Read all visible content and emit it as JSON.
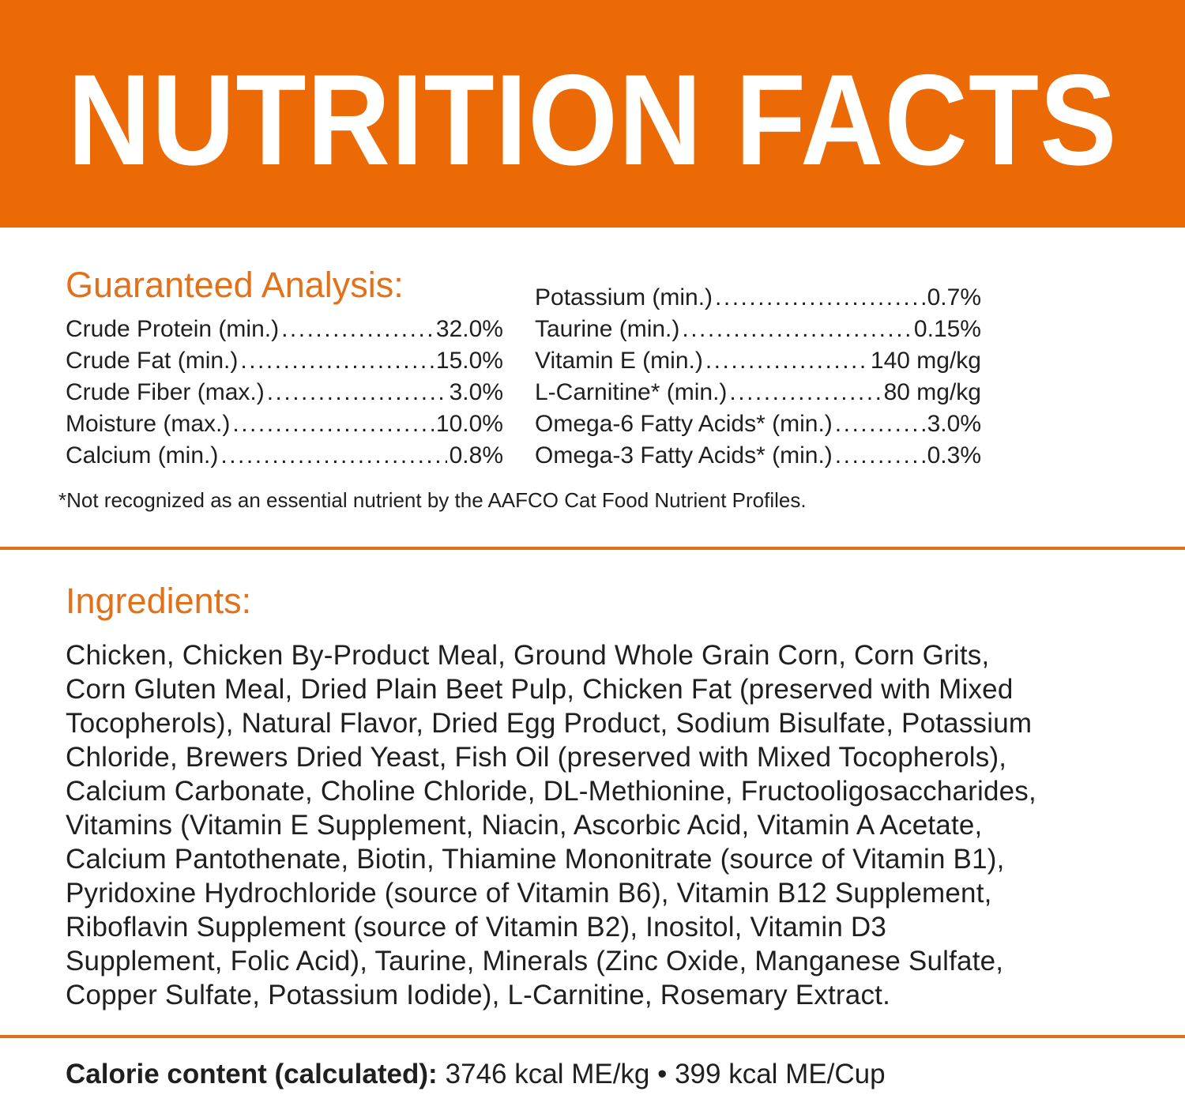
{
  "theme": {
    "orange": "#EC6A05",
    "heading-orange": "#E2711C",
    "rule-orange": "#E0701A",
    "text": "#1F1F1F"
  },
  "header": {
    "title": "NUTRITION FACTS"
  },
  "ga": {
    "heading": "Guaranteed Analysis:",
    "left": [
      {
        "label": "Crude Protein (min.)",
        "value": "32.0%"
      },
      {
        "label": "Crude Fat (min.)",
        "value": "15.0%"
      },
      {
        "label": "Crude Fiber (max.)",
        "value": "3.0%"
      },
      {
        "label": "Moisture (max.)",
        "value": "10.0%"
      },
      {
        "label": "Calcium (min.)",
        "value": "0.8%"
      }
    ],
    "right": [
      {
        "label": "Potassium (min.)",
        "value": "0.7%"
      },
      {
        "label": "Taurine (min.)",
        "value": "0.15%"
      },
      {
        "label": "Vitamin E (min.)",
        "value": "140 mg/kg"
      },
      {
        "label": "L-Carnitine* (min.)",
        "value": "80 mg/kg"
      },
      {
        "label": "Omega-6 Fatty Acids* (min.)",
        "value": "3.0%"
      },
      {
        "label": "Omega-3 Fatty Acids* (min.)",
        "value": "0.3%"
      }
    ],
    "footnote": "*Not recognized as an essential nutrient by the AAFCO Cat Food Nutrient Profiles."
  },
  "ing": {
    "heading": "Ingredients:",
    "lines": [
      "Chicken, Chicken By-Product Meal, Ground Whole Grain Corn, Corn Grits,",
      "Corn Gluten Meal, Dried Plain Beet Pulp, Chicken Fat (preserved with Mixed",
      "Tocopherols), Natural Flavor, Dried Egg Product, Sodium Bisulfate, Potassium",
      "Chloride, Brewers Dried Yeast, Fish Oil (preserved with Mixed Tocopherols),",
      "Calcium Carbonate, Choline Chloride, DL-Methionine, Fructooligosaccharides,",
      "Vitamins (Vitamin E Supplement, Niacin, Ascorbic Acid, Vitamin A Acetate,",
      "Calcium Pantothenate, Biotin, Thiamine Mononitrate (source of Vitamin B1),",
      "Pyridoxine Hydrochloride (source of Vitamin B6), Vitamin B12 Supplement,",
      "Riboflavin Supplement (source of Vitamin B2), Inositol, Vitamin D3",
      "Supplement, Folic Acid), Taurine, Minerals (Zinc Oxide, Manganese Sulfate,",
      "Copper Sulfate, Potassium Iodide), L-Carnitine, Rosemary Extract."
    ]
  },
  "cal": {
    "label": "Calorie content (calculated):",
    "value": "3746 kcal ME/kg • 399 kcal ME/Cup"
  }
}
